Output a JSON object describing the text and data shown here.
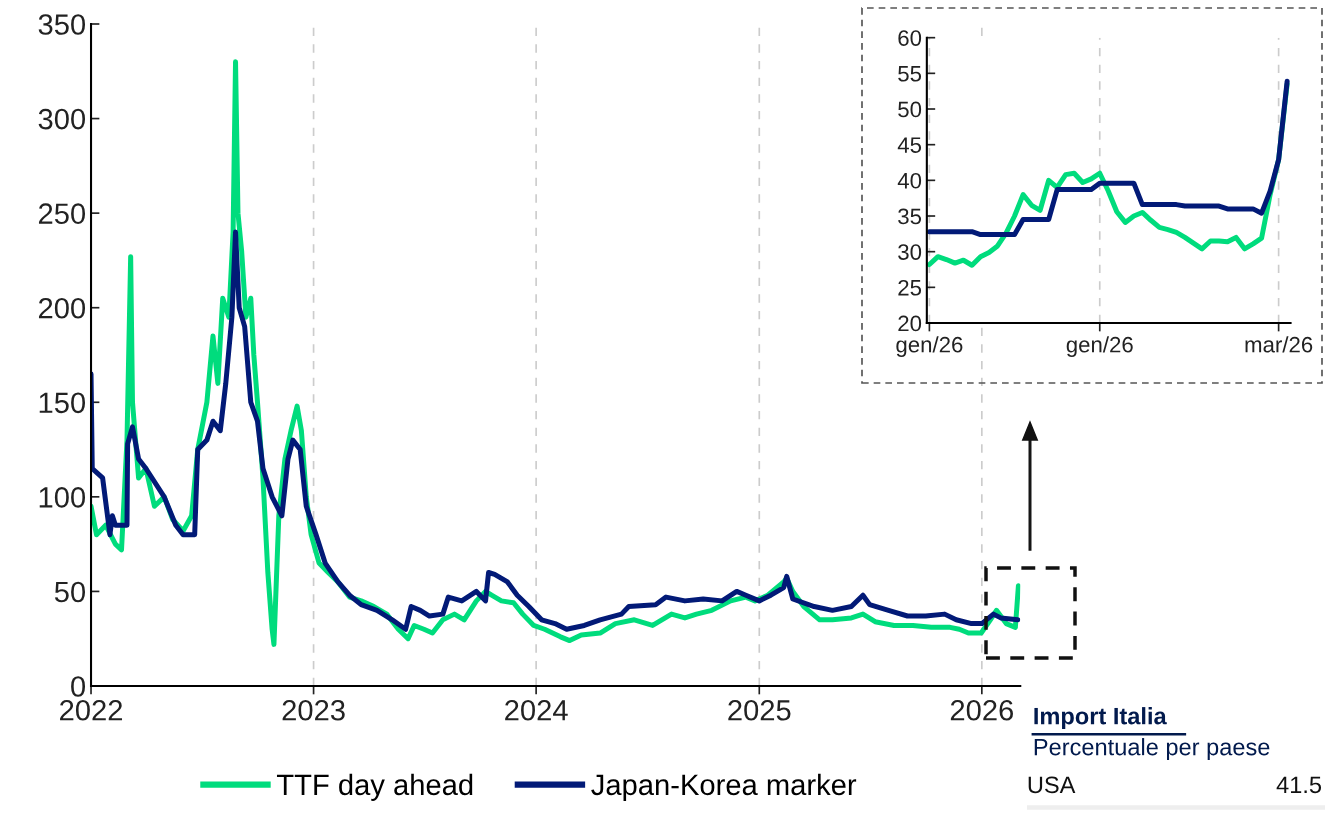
{
  "chart_data": [
    {
      "type": "line",
      "legend": "bottom",
      "grid": "x",
      "xlim": [
        "2022-01-01",
        "2026-03-05"
      ],
      "xticks": [
        "2022",
        "2023",
        "2024",
        "2025",
        "2026"
      ],
      "ylim": [
        0,
        350
      ],
      "yticks": [
        0,
        50,
        100,
        150,
        200,
        250,
        300,
        350
      ],
      "series": [
        {
          "name": "TTF day ahead",
          "color": "#00dc7d",
          "x": [
            "2022-01-01",
            "2022-01-10",
            "2022-01-25",
            "2022-02-10",
            "2022-02-20",
            "2022-03-01",
            "2022-03-07",
            "2022-03-10",
            "2022-03-20",
            "2022-04-01",
            "2022-04-15",
            "2022-05-01",
            "2022-05-15",
            "2022-06-01",
            "2022-06-15",
            "2022-06-25",
            "2022-07-10",
            "2022-07-20",
            "2022-07-28",
            "2022-08-05",
            "2022-08-15",
            "2022-08-22",
            "2022-08-26",
            "2022-08-30",
            "2022-09-05",
            "2022-09-12",
            "2022-09-20",
            "2022-09-25",
            "2022-10-01",
            "2022-10-10",
            "2022-10-18",
            "2022-10-25",
            "2022-10-28",
            "2022-11-05",
            "2022-11-15",
            "2022-11-25",
            "2022-12-05",
            "2022-12-12",
            "2022-12-20",
            "2022-12-28",
            "2023-01-10",
            "2023-01-25",
            "2023-02-10",
            "2023-03-01",
            "2023-03-20",
            "2023-04-10",
            "2023-05-01",
            "2023-05-20",
            "2023-06-05",
            "2023-06-15",
            "2023-07-01",
            "2023-07-15",
            "2023-08-01",
            "2023-08-20",
            "2023-09-05",
            "2023-09-25",
            "2023-10-10",
            "2023-10-20",
            "2023-11-05",
            "2023-11-25",
            "2023-12-10",
            "2023-12-28",
            "2024-01-15",
            "2024-02-10",
            "2024-02-25",
            "2024-03-15",
            "2024-04-15",
            "2024-05-10",
            "2024-06-10",
            "2024-07-10",
            "2024-08-10",
            "2024-09-01",
            "2024-09-20",
            "2024-10-15",
            "2024-11-15",
            "2024-12-10",
            "2024-12-25",
            "2025-01-15",
            "2025-02-10",
            "2025-02-15",
            "2025-02-25",
            "2025-03-15",
            "2025-04-10",
            "2025-05-01",
            "2025-06-01",
            "2025-06-20",
            "2025-07-10",
            "2025-08-10",
            "2025-09-10",
            "2025-10-10",
            "2025-11-10",
            "2025-11-25",
            "2025-12-10",
            "2025-12-31",
            "2026-01-15",
            "2026-01-25",
            "2026-02-10",
            "2026-02-25",
            "2026-03-02"
          ],
          "values": [
            95,
            80,
            85,
            75,
            72,
            130,
            227,
            150,
            110,
            115,
            95,
            100,
            88,
            82,
            90,
            125,
            150,
            185,
            160,
            205,
            195,
            240,
            330,
            250,
            230,
            195,
            205,
            175,
            150,
            110,
            60,
            30,
            22,
            90,
            120,
            135,
            148,
            135,
            100,
            80,
            65,
            60,
            55,
            47,
            45,
            42,
            38,
            30,
            25,
            32,
            30,
            28,
            35,
            38,
            35,
            45,
            50,
            48,
            45,
            44,
            38,
            32,
            30,
            26,
            24,
            27,
            28,
            33,
            35,
            32,
            38,
            36,
            38,
            40,
            45,
            47,
            45,
            48,
            55,
            57,
            50,
            42,
            35,
            35,
            36,
            38,
            34,
            32,
            32,
            31,
            31,
            30,
            28,
            28,
            35,
            40,
            33,
            31,
            53
          ]
        },
        {
          "name": "Japan-Korea marker",
          "color": "#021a77",
          "x": [
            "2022-01-01",
            "2022-01-03",
            "2022-01-20",
            "2022-02-01",
            "2022-02-05",
            "2022-02-10",
            "2022-03-01",
            "2022-03-02",
            "2022-03-10",
            "2022-03-20",
            "2022-04-01",
            "2022-05-01",
            "2022-05-20",
            "2022-06-01",
            "2022-06-20",
            "2022-06-25",
            "2022-07-10",
            "2022-07-20",
            "2022-08-01",
            "2022-08-10",
            "2022-08-20",
            "2022-08-26",
            "2022-09-01",
            "2022-09-10",
            "2022-09-20",
            "2022-10-01",
            "2022-10-10",
            "2022-10-25",
            "2022-11-10",
            "2022-11-20",
            "2022-11-28",
            "2022-12-10",
            "2022-12-20",
            "2023-01-05",
            "2023-01-20",
            "2023-02-10",
            "2023-03-01",
            "2023-03-20",
            "2023-04-15",
            "2023-05-10",
            "2023-06-01",
            "2023-06-10",
            "2023-06-25",
            "2023-07-10",
            "2023-08-01",
            "2023-08-10",
            "2023-09-01",
            "2023-09-25",
            "2023-10-10",
            "2023-10-15",
            "2023-10-25",
            "2023-11-15",
            "2023-12-01",
            "2023-12-20",
            "2024-01-10",
            "2024-02-01",
            "2024-02-20",
            "2024-03-20",
            "2024-04-15",
            "2024-05-20",
            "2024-06-01",
            "2024-07-15",
            "2024-08-01",
            "2024-09-01",
            "2024-10-01",
            "2024-11-01",
            "2024-11-25",
            "2024-12-10",
            "2025-01-01",
            "2025-01-20",
            "2025-02-10",
            "2025-02-15",
            "2025-02-25",
            "2025-04-01",
            "2025-05-01",
            "2025-06-01",
            "2025-06-20",
            "2025-07-01",
            "2025-08-01",
            "2025-09-01",
            "2025-10-01",
            "2025-11-01",
            "2025-11-20",
            "2025-12-15",
            "2026-01-01",
            "2026-01-20",
            "2026-02-01",
            "2026-03-01"
          ],
          "values": [
            165,
            115,
            110,
            80,
            90,
            85,
            85,
            128,
            137,
            120,
            115,
            100,
            85,
            80,
            80,
            125,
            130,
            140,
            135,
            160,
            195,
            240,
            200,
            190,
            150,
            140,
            115,
            100,
            90,
            120,
            130,
            125,
            95,
            80,
            65,
            55,
            48,
            43,
            40,
            35,
            30,
            42,
            40,
            37,
            38,
            47,
            45,
            50,
            45,
            60,
            59,
            55,
            48,
            42,
            35,
            33,
            30,
            32,
            35,
            38,
            42,
            43,
            47,
            45,
            46,
            45,
            50,
            48,
            45,
            48,
            52,
            58,
            46,
            42,
            40,
            42,
            48,
            43,
            40,
            37,
            37,
            38,
            35,
            33,
            33,
            38,
            36,
            35
          ]
        }
      ]
    },
    {
      "type": "line",
      "grid": "x",
      "categories": [
        "gen/26",
        null,
        null,
        null,
        null,
        null,
        null,
        null,
        null,
        null,
        null,
        null,
        null,
        null,
        null,
        null,
        null,
        null,
        null,
        null,
        "gen/26",
        null,
        null,
        null,
        null,
        null,
        null,
        null,
        null,
        null,
        null,
        null,
        null,
        null,
        null,
        null,
        null,
        null,
        null,
        null,
        null,
        "mar/26",
        null
      ],
      "ylim": [
        20,
        60
      ],
      "yticks": [
        20,
        25,
        30,
        35,
        40,
        45,
        50,
        55,
        60
      ],
      "series": [
        {
          "color": "#00dc7d",
          "values": [
            28.2,
            29.3,
            28.9,
            28.4,
            28.8,
            28.1,
            29.3,
            29.9,
            30.8,
            32.6,
            35.0,
            38.0,
            36.5,
            35.8,
            40.0,
            39.0,
            40.8,
            41.0,
            39.7,
            40.2,
            41.0,
            38.5,
            35.6,
            34.1,
            35.0,
            35.5,
            34.4,
            33.4,
            33.1,
            32.7,
            32.0,
            31.2,
            30.4,
            31.5,
            31.5,
            31.4,
            32.0,
            30.4,
            31.1,
            31.9,
            38.0,
            42.9,
            53.5
          ]
        },
        {
          "color": "#021a77",
          "values": [
            32.8,
            32.8,
            32.8,
            32.8,
            32.8,
            32.8,
            32.4,
            32.4,
            32.4,
            32.4,
            32.4,
            34.5,
            34.5,
            34.5,
            34.5,
            38.7,
            38.7,
            38.7,
            38.7,
            38.7,
            39.6,
            39.6,
            39.6,
            39.6,
            39.6,
            36.6,
            36.6,
            36.6,
            36.6,
            36.6,
            36.4,
            36.4,
            36.4,
            36.4,
            36.4,
            36.0,
            36.0,
            36.0,
            36.0,
            35.4,
            38.5,
            42.9,
            53.9
          ]
        }
      ]
    },
    {
      "type": "other",
      "title": "Import Italia",
      "subtitle": "Percentuale per paese",
      "annotations": [
        "USA",
        "41.5"
      ]
    }
  ]
}
